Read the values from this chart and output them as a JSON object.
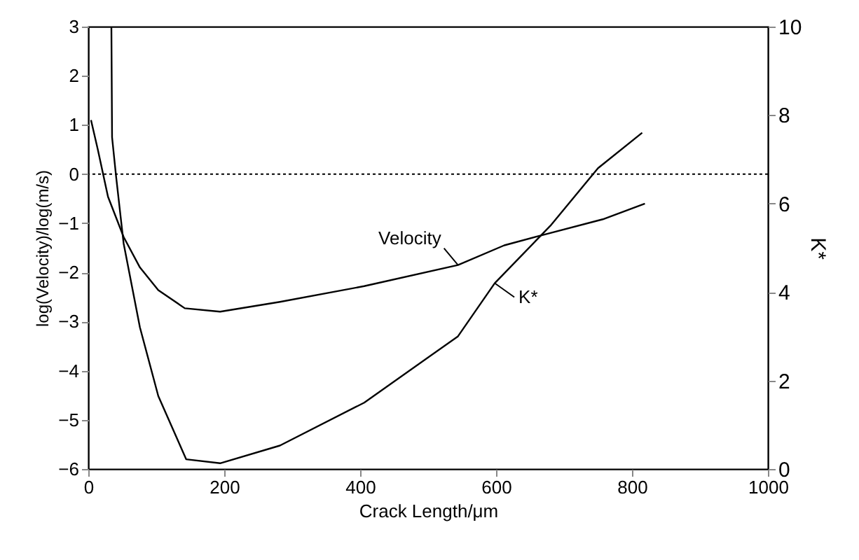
{
  "chart_data": {
    "type": "line",
    "xlabel": "Crack Length/μm",
    "ylabel": "log(Velocity)/log(m/s)",
    "y2label": "K*",
    "xlim": [
      0,
      1000
    ],
    "xticks": [
      0,
      200,
      400,
      600,
      800,
      1000
    ],
    "ylim": [
      -6,
      3
    ],
    "yticks": [
      -6,
      -5,
      -4,
      -3,
      -2,
      -1,
      0,
      1,
      2,
      3
    ],
    "y2lim": [
      0,
      10
    ],
    "y2ticks": [
      0,
      2,
      4,
      6,
      8,
      10
    ],
    "grid": false,
    "marker": "none",
    "line_style": "solid",
    "series": [
      {
        "name": "Velocity",
        "color": "#000000",
        "x": [
          4,
          14,
          29,
          52,
          76,
          103,
          142,
          194,
          282,
          406,
          544,
          612,
          674,
          757,
          819
        ],
        "values": [
          1.1,
          0.5,
          -0.46,
          -1.28,
          -1.9,
          -2.36,
          -2.73,
          -2.8,
          -2.6,
          -2.28,
          -1.85,
          -1.45,
          -1.22,
          -0.92,
          -0.6
        ]
      },
      {
        "name": "K*",
        "color": "#000000",
        "axis": "y2",
        "x": [
          34,
          35,
          41,
          52,
          76,
          103,
          144,
          194,
          282,
          406,
          544,
          598,
          680,
          750,
          815
        ],
        "values": [
          10,
          7.5,
          6.6,
          5.1,
          3.2,
          1.65,
          0.22,
          0.13,
          0.53,
          1.5,
          3.0,
          4.2,
          5.5,
          6.8,
          7.6
        ]
      }
    ],
    "ref_lines": [
      {
        "axis": "y",
        "value": 0,
        "color": "#000000",
        "line_style": "dotted"
      }
    ]
  }
}
